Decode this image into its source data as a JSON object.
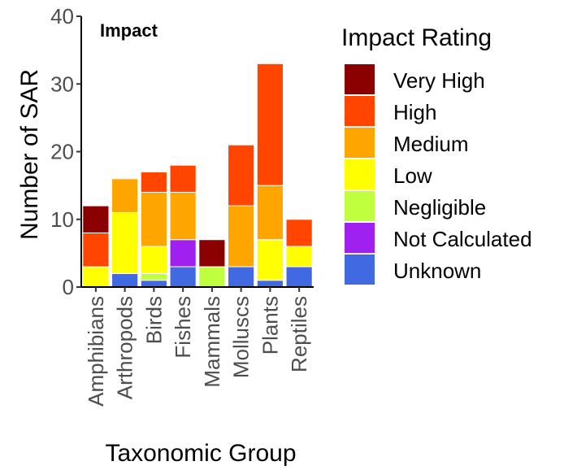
{
  "chart_data": {
    "type": "bar",
    "stacked": true,
    "title": "Impact",
    "xlabel": "Taxonomic Group",
    "ylabel": "Number of SAR",
    "ylim": [
      0,
      40
    ],
    "yticks": [
      0,
      10,
      20,
      30,
      40
    ],
    "grid": false,
    "legend_title": "Impact Rating",
    "legend_position": "right",
    "categories": [
      "Amphibians",
      "Arthropods",
      "Birds",
      "Fishes",
      "Mammals",
      "Molluscs",
      "Plants",
      "Reptiles"
    ],
    "series": [
      {
        "name": "Unknown",
        "color": "#4169e1",
        "values": [
          0,
          2,
          1,
          3,
          0,
          3,
          1,
          3
        ]
      },
      {
        "name": "Not Calculated",
        "color": "#a020f0",
        "values": [
          0,
          0,
          0,
          4,
          0,
          0,
          0,
          0
        ]
      },
      {
        "name": "Negligible",
        "color": "#c0ff3e",
        "values": [
          0,
          0,
          1,
          0,
          3,
          0,
          0,
          0
        ]
      },
      {
        "name": "Low",
        "color": "#ffff00",
        "values": [
          3,
          9,
          4,
          0,
          0,
          0,
          6,
          3
        ]
      },
      {
        "name": "Medium",
        "color": "#ffa500",
        "values": [
          0,
          5,
          8,
          7,
          0,
          9,
          8,
          0
        ]
      },
      {
        "name": "High",
        "color": "#ff4500",
        "values": [
          5,
          0,
          3,
          4,
          0,
          9,
          18,
          4
        ]
      },
      {
        "name": "Very High",
        "color": "#8b0000",
        "values": [
          4,
          0,
          0,
          0,
          4,
          0,
          0,
          0
        ]
      }
    ],
    "legend_order": [
      "Very High",
      "High",
      "Medium",
      "Low",
      "Negligible",
      "Not Calculated",
      "Unknown"
    ]
  }
}
